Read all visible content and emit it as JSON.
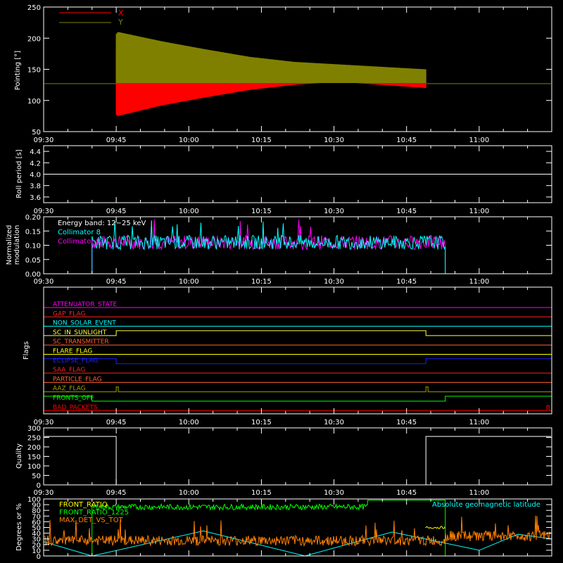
{
  "chart_data": [
    {
      "type": "line",
      "ylabel": "Pointing [°]",
      "xticks": [
        "09:30",
        "09:45",
        "10:00",
        "10:15",
        "10:30",
        "10:45",
        "11:00"
      ],
      "yticks": [
        "50",
        "100",
        "150",
        "200",
        "250"
      ],
      "ylim": [
        50,
        250
      ],
      "legend": "top-left",
      "series": [
        {
          "name": "X",
          "color": "#ff0000",
          "baseline": 127,
          "start": "09:45",
          "end": "10:49",
          "envelope_upper": [
            127,
            183,
            172,
            165,
            160,
            157,
            154,
            151,
            150
          ],
          "envelope_lower": [
            127,
            75,
            92,
            105,
            117,
            125,
            130,
            125,
            120
          ]
        },
        {
          "name": "Y",
          "color": "#808000",
          "baseline": 127,
          "start": "09:45",
          "end": "10:49",
          "envelope_upper": [
            127,
            210,
            195,
            182,
            170,
            162,
            158,
            154,
            150
          ],
          "envelope_lower": [
            127,
            128,
            128,
            128,
            128,
            128,
            128,
            128,
            128
          ]
        }
      ]
    },
    {
      "type": "line",
      "ylabel": "Roll period [s]",
      "xticks": [
        "09:30",
        "09:45",
        "10:00",
        "10:15",
        "10:30",
        "10:45",
        "11:00"
      ],
      "yticks": [
        "3.6",
        "3.8",
        "4.0",
        "4.2",
        "4.4"
      ],
      "ylim": [
        3.5,
        4.5
      ],
      "series": [
        {
          "color": "#ffffff",
          "value": 4.0
        }
      ]
    },
    {
      "type": "line",
      "ylabel": "Normalized\nmodulation",
      "xticks": [
        "09:30",
        "09:45",
        "10:00",
        "10:15",
        "10:30",
        "10:45",
        "11:00"
      ],
      "yticks": [
        "0.00",
        "0.05",
        "0.10",
        "0.15",
        "0.20"
      ],
      "ylim": [
        0,
        0.2
      ],
      "annotation": "Energy band: 12−25 keV",
      "series": [
        {
          "name": "Collimator 8",
          "color": "#00ffff",
          "start": "09:40",
          "end": "10:53",
          "mean": 0.11
        },
        {
          "name": "Collimator 9",
          "color": "#ff00ff",
          "start": "09:40",
          "end": "10:53",
          "mean": 0.11
        }
      ]
    },
    {
      "type": "line",
      "ylabel": "Flags",
      "flags": [
        {
          "name": "ATTENUATOR_STATE",
          "color": "#ff00ff",
          "segments": []
        },
        {
          "name": "GAP_FLAG",
          "color": "#ff2020",
          "segments": []
        },
        {
          "name": "NON_SOLAR_EVENT",
          "color": "#00ffff",
          "segments": []
        },
        {
          "name": "SC_IN_SUNLIGHT",
          "color": "#ffff40",
          "segments": [
            [
              "09:45",
              "10:49"
            ]
          ]
        },
        {
          "name": "SC_TRANSMITTER",
          "color": "#ff6030",
          "segments": []
        },
        {
          "name": "FLARE_FLAG",
          "color": "#ffff00",
          "segments": []
        },
        {
          "name": "ECLIPSE_FLAG",
          "color": "#2020ff",
          "segments": [
            [
              "09:30",
              "09:45"
            ],
            [
              "10:49",
              "11:15"
            ]
          ]
        },
        {
          "name": "SAA_FLAG",
          "color": "#ff2020",
          "segments": []
        },
        {
          "name": "PARTICLE_FLAG",
          "color": "#ff6030",
          "segments": []
        },
        {
          "name": "AAZ_FLAG",
          "color": "#a0a000",
          "segments": [
            [
              "09:45",
              "09:45"
            ],
            [
              "10:49",
              "10:49"
            ]
          ]
        },
        {
          "name": "FRONTS_OFF",
          "color": "#00ff00",
          "segments": [
            [
              "09:30",
              "09:40"
            ],
            [
              "10:53",
              "11:15"
            ]
          ]
        },
        {
          "name": "BAD_PACKETS",
          "color": "#ff0000",
          "segments": [
            [
              "11:14",
              "11:14"
            ]
          ]
        }
      ]
    },
    {
      "type": "line",
      "ylabel": "Quality",
      "xticks": [
        "09:30",
        "09:45",
        "10:00",
        "10:15",
        "10:30",
        "10:45",
        "11:00"
      ],
      "yticks": [
        "0",
        "50",
        "100",
        "150",
        "200",
        "250",
        "300"
      ],
      "ylim": [
        0,
        300
      ],
      "series": [
        {
          "color": "#ffffff",
          "points": [
            [
              "09:30",
              255
            ],
            [
              "09:45",
              255
            ],
            [
              "09:45",
              0
            ],
            [
              "10:49",
              0
            ],
            [
              "10:49",
              255
            ],
            [
              "11:15",
              255
            ]
          ]
        }
      ]
    },
    {
      "type": "line",
      "ylabel": "Degrees or %",
      "yticks": [
        "0",
        "10",
        "20",
        "30",
        "40",
        "50",
        "60",
        "70",
        "80",
        "90",
        "100"
      ],
      "ylim": [
        0,
        100
      ],
      "annotation": "Absolute geomagnetic latitude",
      "series": [
        {
          "name": "FRONT_RATIO",
          "color": "#ffff00"
        },
        {
          "name": "FRONT_RATIO_1225",
          "color": "#00ff00"
        },
        {
          "name": "MAX_DET_VS_TOT",
          "color": "#ff8000"
        },
        {
          "name": "Absolute geomagnetic latitude",
          "color": "#00ffff"
        }
      ]
    }
  ]
}
